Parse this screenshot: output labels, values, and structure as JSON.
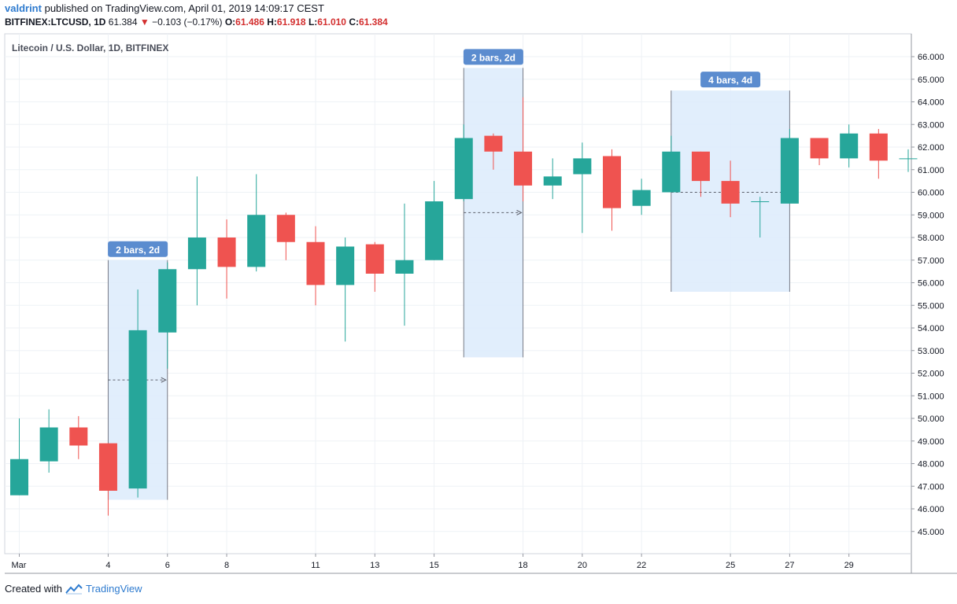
{
  "header": {
    "user": "valdrint",
    "published_text": "published on TradingView.com, April 01, 2019 14:09:17 CEST",
    "symbol": "BITFINEX:LTCUSD, 1D",
    "last": "61.384",
    "down_arrow": "▼",
    "change": "−0.103 (−0.17%)",
    "o_label": "O:",
    "o_value": "61.486",
    "h_label": "H:",
    "h_value": "61.918",
    "l_label": "L:",
    "l_value": "61.010",
    "c_label": "C:",
    "c_value": "61.384"
  },
  "footer": {
    "created_with": "Created with",
    "brand": "TradingView"
  },
  "colors": {
    "up": "#26a69a",
    "down": "#ef5350",
    "range_fill": "#dcebfb",
    "range_label": "#5b8ccf",
    "grid": "#eef2f6"
  },
  "chart_data": {
    "type": "candlestick",
    "title": "Litecoin / U.S. Dollar, 1D, BITFINEX",
    "ylim": [
      44.2,
      66.6
    ],
    "y_ticks": [
      "45.000",
      "46.000",
      "47.000",
      "48.000",
      "49.000",
      "50.000",
      "51.000",
      "52.000",
      "53.000",
      "54.000",
      "55.000",
      "56.000",
      "57.000",
      "58.000",
      "59.000",
      "60.000",
      "61.000",
      "62.000",
      "63.000",
      "64.000",
      "65.000",
      "66.000"
    ],
    "x_ticks": [
      {
        "label": "Mar",
        "day": 1
      },
      {
        "label": "4",
        "day": 4
      },
      {
        "label": "6",
        "day": 6
      },
      {
        "label": "8",
        "day": 8
      },
      {
        "label": "11",
        "day": 11
      },
      {
        "label": "13",
        "day": 13
      },
      {
        "label": "15",
        "day": 15
      },
      {
        "label": "18",
        "day": 18
      },
      {
        "label": "20",
        "day": 20
      },
      {
        "label": "22",
        "day": 22
      },
      {
        "label": "25",
        "day": 25
      },
      {
        "label": "27",
        "day": 27
      },
      {
        "label": "29",
        "day": 29
      }
    ],
    "candles": [
      {
        "day": 1,
        "o": 46.6,
        "h": 50.0,
        "l": 46.6,
        "c": 48.2
      },
      {
        "day": 2,
        "o": 48.1,
        "h": 50.4,
        "l": 47.6,
        "c": 49.6
      },
      {
        "day": 3,
        "o": 49.6,
        "h": 50.1,
        "l": 48.2,
        "c": 48.8
      },
      {
        "day": 4,
        "o": 48.9,
        "h": 48.9,
        "l": 45.7,
        "c": 46.8
      },
      {
        "day": 5,
        "o": 46.9,
        "h": 55.7,
        "l": 46.5,
        "c": 53.9
      },
      {
        "day": 6,
        "o": 53.8,
        "h": 56.9,
        "l": 52.2,
        "c": 56.6
      },
      {
        "day": 7,
        "o": 56.6,
        "h": 60.7,
        "l": 55.0,
        "c": 58.0
      },
      {
        "day": 8,
        "o": 58.0,
        "h": 58.8,
        "l": 55.3,
        "c": 56.7
      },
      {
        "day": 9,
        "o": 56.7,
        "h": 60.8,
        "l": 56.5,
        "c": 59.0
      },
      {
        "day": 10,
        "o": 59.0,
        "h": 59.1,
        "l": 57.0,
        "c": 57.8
      },
      {
        "day": 11,
        "o": 57.8,
        "h": 58.5,
        "l": 55.0,
        "c": 55.9
      },
      {
        "day": 12,
        "o": 55.9,
        "h": 58.0,
        "l": 53.4,
        "c": 57.6
      },
      {
        "day": 13,
        "o": 57.7,
        "h": 57.8,
        "l": 55.6,
        "c": 56.4
      },
      {
        "day": 14,
        "o": 56.4,
        "h": 59.5,
        "l": 54.1,
        "c": 57.0
      },
      {
        "day": 15,
        "o": 57.0,
        "h": 60.5,
        "l": 57.0,
        "c": 59.6
      },
      {
        "day": 16,
        "o": 59.7,
        "h": 63.0,
        "l": 59.6,
        "c": 62.4
      },
      {
        "day": 17,
        "o": 62.5,
        "h": 62.6,
        "l": 61.0,
        "c": 61.8
      },
      {
        "day": 18,
        "o": 61.8,
        "h": 64.2,
        "l": 59.6,
        "c": 60.3
      },
      {
        "day": 19,
        "o": 60.3,
        "h": 61.5,
        "l": 59.7,
        "c": 60.7
      },
      {
        "day": 20,
        "o": 60.8,
        "h": 62.2,
        "l": 58.2,
        "c": 61.5
      },
      {
        "day": 21,
        "o": 61.6,
        "h": 61.9,
        "l": 58.3,
        "c": 59.3
      },
      {
        "day": 22,
        "o": 59.4,
        "h": 60.6,
        "l": 59.0,
        "c": 60.1
      },
      {
        "day": 23,
        "o": 60.0,
        "h": 62.5,
        "l": 60.0,
        "c": 61.8
      },
      {
        "day": 24,
        "o": 61.8,
        "h": 61.8,
        "l": 59.8,
        "c": 60.5
      },
      {
        "day": 25,
        "o": 60.5,
        "h": 61.4,
        "l": 58.9,
        "c": 59.5
      },
      {
        "day": 26,
        "o": 59.6,
        "h": 59.8,
        "l": 58.0,
        "c": 59.6
      },
      {
        "day": 27,
        "o": 59.5,
        "h": 62.8,
        "l": 59.5,
        "c": 62.4
      },
      {
        "day": 28,
        "o": 62.4,
        "h": 62.4,
        "l": 61.2,
        "c": 61.5
      },
      {
        "day": 29,
        "o": 61.5,
        "h": 63.0,
        "l": 61.1,
        "c": 62.6
      },
      {
        "day": 30,
        "o": 62.6,
        "h": 62.8,
        "l": 60.6,
        "c": 61.4
      },
      {
        "day": 31,
        "o": 61.5,
        "h": 61.9,
        "l": 60.9,
        "c": 61.5
      }
    ],
    "range_annotations": [
      {
        "label": "2 bars, 2d",
        "from_day": 4,
        "to_day": 6,
        "low": 46.4,
        "high": 57.0,
        "start_price": 51.7
      },
      {
        "label": "2 bars, 2d",
        "from_day": 16,
        "to_day": 18,
        "low": 52.7,
        "high": 65.5,
        "start_price": 59.1
      },
      {
        "label": "4 bars, 4d",
        "from_day": 23,
        "to_day": 27,
        "low": 55.6,
        "high": 64.5,
        "start_price": 60.0
      }
    ],
    "grid": true
  }
}
